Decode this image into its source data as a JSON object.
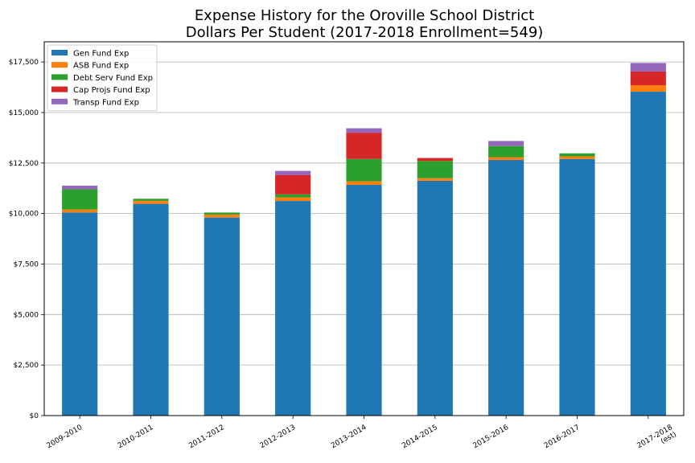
{
  "chart_data": {
    "type": "bar",
    "stacked": true,
    "title": "Expense History for the Oroville School District",
    "subtitle": "Dollars Per Student (2017-2018 Enrollment=549)",
    "xlabel": "",
    "ylabel": "",
    "ylim": [
      0,
      18500
    ],
    "yticks": [
      0,
      2500,
      5000,
      7500,
      10000,
      12500,
      15000,
      17500
    ],
    "ytick_labels": [
      "$0",
      "$2,500",
      "$5,000",
      "$7,500",
      "$10,000",
      "$12,500",
      "$15,000",
      "$17,500"
    ],
    "grid": "horizontal",
    "legend_position": "top-left",
    "categories": [
      [
        "2009-2010"
      ],
      [
        "2010-2011"
      ],
      [
        "2011-2012"
      ],
      [
        "2012-2013"
      ],
      [
        "2013-2014"
      ],
      [
        "2014-2015"
      ],
      [
        "2015-2016"
      ],
      [
        "2016-2017"
      ],
      [
        "2017-2018",
        "(est)"
      ]
    ],
    "series": [
      {
        "name": "Gen Fund Exp",
        "color": "#1f77b4",
        "values": [
          10050,
          10480,
          9800,
          10620,
          11420,
          11620,
          12650,
          12700,
          16030
        ]
      },
      {
        "name": "ASB Fund Exp",
        "color": "#ff7f0e",
        "values": [
          150,
          150,
          150,
          180,
          180,
          130,
          140,
          130,
          320
        ]
      },
      {
        "name": "Debt Serv Fund Exp",
        "color": "#2ca02c",
        "values": [
          1000,
          100,
          100,
          150,
          1100,
          850,
          550,
          150,
          0
        ]
      },
      {
        "name": "Cap Projs Fund Exp",
        "color": "#d62728",
        "values": [
          0,
          0,
          0,
          960,
          1300,
          150,
          0,
          0,
          680
        ]
      },
      {
        "name": "Transp Fund Exp",
        "color": "#9467bd",
        "values": [
          180,
          0,
          0,
          200,
          220,
          0,
          250,
          0,
          420
        ]
      }
    ]
  }
}
